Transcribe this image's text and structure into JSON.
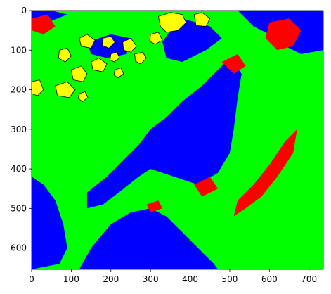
{
  "chart_data": {
    "type": "heatmap",
    "title": "",
    "xlabel": "",
    "ylabel": "",
    "xlim": [
      0,
      736
    ],
    "ylim": [
      654,
      0
    ],
    "y_axis_inverted": true,
    "grid": false,
    "legend": "none",
    "x_ticks": [
      0,
      100,
      200,
      300,
      400,
      500,
      600,
      700
    ],
    "y_ticks": [
      0,
      100,
      200,
      300,
      400,
      500,
      600
    ],
    "class_colors": {
      "blue": "#0000ff",
      "green": "#00ff00",
      "red": "#ff0000",
      "yellow": "#ffff00",
      "black": "#000000"
    },
    "regions": [
      {
        "class": "green",
        "polygon": [
          [
            0,
            70
          ],
          [
            25,
            40
          ],
          [
            90,
            20
          ],
          [
            150,
            30
          ],
          [
            210,
            15
          ],
          [
            290,
            20
          ],
          [
            330,
            10
          ],
          [
            380,
            0
          ],
          [
            470,
            0
          ],
          [
            500,
            30
          ],
          [
            470,
            80
          ],
          [
            400,
            130
          ],
          [
            330,
            150
          ],
          [
            280,
            180
          ],
          [
            250,
            220
          ],
          [
            220,
            260
          ],
          [
            200,
            300
          ],
          [
            170,
            330
          ],
          [
            140,
            350
          ],
          [
            120,
            380
          ],
          [
            100,
            420
          ],
          [
            80,
            460
          ],
          [
            60,
            520
          ],
          [
            40,
            580
          ],
          [
            0,
            600
          ]
        ]
      },
      {
        "class": "green",
        "polygon": [
          [
            150,
            420
          ],
          [
            260,
            390
          ],
          [
            300,
            320
          ],
          [
            360,
            270
          ],
          [
            440,
            210
          ],
          [
            520,
            150
          ],
          [
            570,
            110
          ],
          [
            650,
            100
          ],
          [
            736,
            110
          ],
          [
            736,
            654
          ],
          [
            380,
            654
          ],
          [
            280,
            600
          ],
          [
            190,
            540
          ],
          [
            130,
            500
          ]
        ]
      },
      {
        "class": "green",
        "polygon": [
          [
            520,
            210
          ],
          [
            560,
            160
          ],
          [
            610,
            140
          ],
          [
            660,
            160
          ],
          [
            700,
            200
          ],
          [
            720,
            250
          ],
          [
            736,
            270
          ],
          [
            736,
            420
          ],
          [
            620,
            460
          ],
          [
            560,
            520
          ],
          [
            500,
            560
          ],
          [
            420,
            600
          ],
          [
            360,
            560
          ],
          [
            330,
            520
          ],
          [
            360,
            480
          ],
          [
            420,
            450
          ],
          [
            470,
            420
          ],
          [
            500,
            380
          ],
          [
            520,
            300
          ]
        ]
      },
      {
        "class": "green",
        "polygon": [
          [
            0,
            560
          ],
          [
            40,
            580
          ],
          [
            60,
            520
          ],
          [
            80,
            560
          ],
          [
            100,
            600
          ],
          [
            130,
            654
          ],
          [
            0,
            654
          ]
        ]
      },
      {
        "class": "blue",
        "polygon": [
          [
            140,
            460
          ],
          [
            190,
            420
          ],
          [
            230,
            380
          ],
          [
            270,
            340
          ],
          [
            300,
            300
          ],
          [
            340,
            270
          ],
          [
            380,
            230
          ],
          [
            430,
            190
          ],
          [
            470,
            150
          ],
          [
            500,
            120
          ],
          [
            530,
            160
          ],
          [
            520,
            220
          ],
          [
            510,
            300
          ],
          [
            500,
            360
          ],
          [
            470,
            410
          ],
          [
            420,
            440
          ],
          [
            360,
            420
          ],
          [
            300,
            400
          ],
          [
            270,
            420
          ],
          [
            220,
            460
          ],
          [
            180,
            490
          ],
          [
            140,
            500
          ]
        ]
      },
      {
        "class": "blue",
        "polygon": [
          [
            120,
            654
          ],
          [
            150,
            600
          ],
          [
            200,
            540
          ],
          [
            250,
            510
          ],
          [
            300,
            500
          ],
          [
            340,
            520
          ],
          [
            380,
            560
          ],
          [
            420,
            600
          ],
          [
            460,
            640
          ],
          [
            470,
            654
          ]
        ]
      },
      {
        "class": "blue",
        "polygon": [
          [
            0,
            420
          ],
          [
            30,
            440
          ],
          [
            60,
            480
          ],
          [
            80,
            540
          ],
          [
            90,
            600
          ],
          [
            70,
            640
          ],
          [
            0,
            654
          ]
        ]
      },
      {
        "class": "blue",
        "polygon": [
          [
            520,
            0
          ],
          [
            736,
            0
          ],
          [
            736,
            100
          ],
          [
            680,
            110
          ],
          [
            640,
            90
          ],
          [
            600,
            60
          ],
          [
            560,
            40
          ]
        ]
      },
      {
        "class": "blue",
        "polygon": [
          [
            0,
            0
          ],
          [
            50,
            0
          ],
          [
            90,
            10
          ],
          [
            40,
            30
          ],
          [
            0,
            40
          ]
        ]
      },
      {
        "class": "blue",
        "polygon": [
          [
            380,
            20
          ],
          [
            450,
            40
          ],
          [
            480,
            70
          ],
          [
            440,
            100
          ],
          [
            380,
            130
          ],
          [
            340,
            120
          ],
          [
            330,
            80
          ],
          [
            350,
            50
          ]
        ]
      },
      {
        "class": "blue",
        "polygon": [
          [
            140,
            80
          ],
          [
            200,
            60
          ],
          [
            250,
            70
          ],
          [
            240,
            110
          ],
          [
            190,
            120
          ],
          [
            150,
            110
          ]
        ]
      },
      {
        "class": "red",
        "polygon": [
          [
            560,
            440
          ],
          [
            600,
            390
          ],
          [
            640,
            330
          ],
          [
            670,
            300
          ],
          [
            660,
            360
          ],
          [
            620,
            420
          ],
          [
            580,
            470
          ],
          [
            540,
            500
          ],
          [
            510,
            520
          ],
          [
            520,
            480
          ]
        ]
      },
      {
        "class": "red",
        "polygon": [
          [
            600,
            30
          ],
          [
            650,
            20
          ],
          [
            680,
            50
          ],
          [
            660,
            90
          ],
          [
            620,
            100
          ],
          [
            590,
            70
          ]
        ]
      },
      {
        "class": "red",
        "polygon": [
          [
            0,
            20
          ],
          [
            40,
            10
          ],
          [
            60,
            40
          ],
          [
            30,
            60
          ],
          [
            0,
            50
          ]
        ]
      },
      {
        "class": "red",
        "polygon": [
          [
            480,
            130
          ],
          [
            520,
            110
          ],
          [
            540,
            140
          ],
          [
            510,
            160
          ]
        ]
      },
      {
        "class": "red",
        "polygon": [
          [
            410,
            440
          ],
          [
            450,
            420
          ],
          [
            470,
            450
          ],
          [
            430,
            470
          ]
        ]
      },
      {
        "class": "red",
        "polygon": [
          [
            290,
            490
          ],
          [
            320,
            480
          ],
          [
            330,
            500
          ],
          [
            300,
            510
          ]
        ]
      },
      {
        "class": "red",
        "polygon": [
          [
            330,
            20
          ],
          [
            360,
            10
          ],
          [
            370,
            30
          ],
          [
            340,
            40
          ]
        ]
      },
      {
        "class": "yellow",
        "polygon": [
          [
            320,
            15
          ],
          [
            350,
            5
          ],
          [
            380,
            10
          ],
          [
            390,
            30
          ],
          [
            370,
            50
          ],
          [
            340,
            55
          ],
          [
            325,
            40
          ]
        ]
      },
      {
        "class": "yellow",
        "polygon": [
          [
            410,
            10
          ],
          [
            430,
            5
          ],
          [
            450,
            20
          ],
          [
            440,
            40
          ],
          [
            415,
            38
          ]
        ]
      },
      {
        "class": "yellow",
        "polygon": [
          [
            120,
            70
          ],
          [
            140,
            60
          ],
          [
            160,
            75
          ],
          [
            150,
            95
          ],
          [
            125,
            90
          ]
        ]
      },
      {
        "class": "yellow",
        "polygon": [
          [
            180,
            70
          ],
          [
            200,
            65
          ],
          [
            210,
            80
          ],
          [
            195,
            95
          ],
          [
            178,
            88
          ]
        ]
      },
      {
        "class": "yellow",
        "polygon": [
          [
            150,
            130
          ],
          [
            170,
            120
          ],
          [
            190,
            135
          ],
          [
            180,
            155
          ],
          [
            155,
            150
          ]
        ]
      },
      {
        "class": "yellow",
        "polygon": [
          [
            100,
            150
          ],
          [
            125,
            140
          ],
          [
            140,
            160
          ],
          [
            130,
            180
          ],
          [
            105,
            175
          ]
        ]
      },
      {
        "class": "yellow",
        "polygon": [
          [
            60,
            190
          ],
          [
            90,
            180
          ],
          [
            110,
            200
          ],
          [
            95,
            220
          ],
          [
            65,
            215
          ]
        ]
      },
      {
        "class": "yellow",
        "polygon": [
          [
            0,
            180
          ],
          [
            20,
            175
          ],
          [
            30,
            200
          ],
          [
            15,
            215
          ],
          [
            0,
            210
          ]
        ]
      },
      {
        "class": "yellow",
        "polygon": [
          [
            70,
            100
          ],
          [
            90,
            95
          ],
          [
            100,
            115
          ],
          [
            85,
            130
          ],
          [
            68,
            120
          ]
        ]
      },
      {
        "class": "yellow",
        "polygon": [
          [
            230,
            80
          ],
          [
            250,
            70
          ],
          [
            265,
            90
          ],
          [
            250,
            105
          ],
          [
            232,
            100
          ]
        ]
      },
      {
        "class": "yellow",
        "polygon": [
          [
            260,
            110
          ],
          [
            280,
            105
          ],
          [
            290,
            120
          ],
          [
            275,
            135
          ],
          [
            262,
            128
          ]
        ]
      },
      {
        "class": "yellow",
        "polygon": [
          [
            300,
            60
          ],
          [
            320,
            55
          ],
          [
            330,
            75
          ],
          [
            312,
            85
          ],
          [
            298,
            78
          ]
        ]
      },
      {
        "class": "yellow",
        "polygon": [
          [
            200,
            110
          ],
          [
            215,
            105
          ],
          [
            222,
            120
          ],
          [
            208,
            130
          ],
          [
            198,
            124
          ]
        ]
      },
      {
        "class": "yellow",
        "polygon": [
          [
            120,
            210
          ],
          [
            135,
            205
          ],
          [
            142,
            220
          ],
          [
            128,
            230
          ],
          [
            118,
            222
          ]
        ]
      },
      {
        "class": "yellow",
        "polygon": [
          [
            210,
            150
          ],
          [
            225,
            145
          ],
          [
            232,
            160
          ],
          [
            218,
            170
          ],
          [
            208,
            163
          ]
        ]
      }
    ]
  }
}
